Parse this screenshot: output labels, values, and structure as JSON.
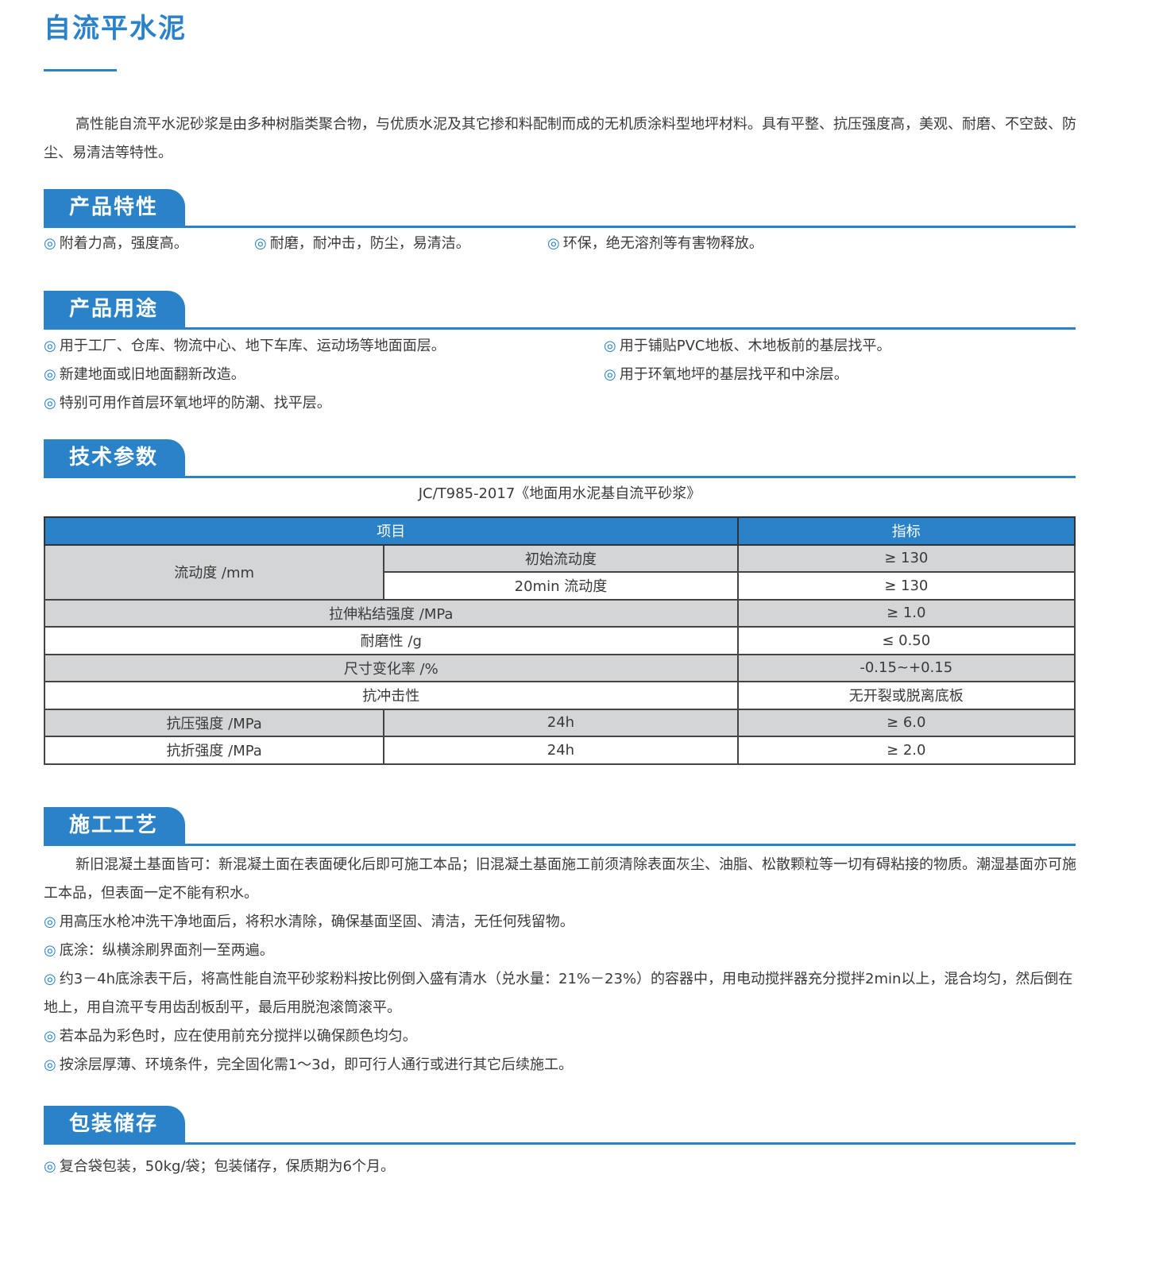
{
  "title": "自流平水泥",
  "intro": "高性能自流平水泥砂浆是由多种树脂类聚合物，与优质水泥及其它掺和料配制而成的无机质涂料型地坪材料。具有平整、抗压强度高，美观、耐磨、不空鼓、防尘、易清洁等特性。",
  "bullet_icon": "double-circle-icon",
  "accent_color": "#2a82c8",
  "features": {
    "heading": "产品特性",
    "items": [
      "附着力高，强度高。",
      "耐磨，耐冲击，防尘，易清洁。",
      "环保，绝无溶剂等有害物释放。"
    ]
  },
  "uses": {
    "heading": "产品用途",
    "items": [
      "用于工厂、仓库、物流中心、地下车库、运动场等地面面层。",
      "用于铺贴PVC地板、木地板前的基层找平。",
      "新建地面或旧地面翻新改造。",
      "用于环氧地坪的基层找平和中涂层。",
      "特别可用作首层环氧地坪的防潮、找平层。"
    ]
  },
  "specs": {
    "heading": "技术参数",
    "standard": "JC/T985-2017《地面用水泥基自流平砂浆》",
    "headers": [
      "项目",
      "指标"
    ],
    "rows": [
      {
        "item": "流动度 /mm",
        "sub": "初始流动度",
        "value": "≥ 130"
      },
      {
        "sub": "20min 流动度",
        "value": "≥ 130"
      },
      {
        "item": "拉伸粘结强度 /MPa",
        "value": "≥ 1.0"
      },
      {
        "item": "耐磨性 /g",
        "value": "≤ 0.50"
      },
      {
        "item": "尺寸变化率 /%",
        "value": "-0.15~+0.15"
      },
      {
        "item": "抗冲击性",
        "value": "无开裂或脱离底板"
      },
      {
        "item": "抗压强度 /MPa",
        "sub": "24h",
        "value": "≥ 6.0"
      },
      {
        "item": "抗折强度 /MPa",
        "sub": "24h",
        "value": "≥ 2.0"
      }
    ]
  },
  "process": {
    "heading": "施工工艺",
    "intro": "新旧混凝土基面皆可：新混凝土面在表面硬化后即可施工本品；旧混凝土基面施工前须清除表面灰尘、油脂、松散颗粒等一切有碍粘接的物质。潮湿基面亦可施工本品，但表面一定不能有积水。",
    "items": [
      "用高压水枪冲洗干净地面后，将积水清除，确保基面坚固、清洁，无任何残留物。",
      "底涂：纵横涂刷界面剂一至两遍。",
      "约3－4h底涂表干后，将高性能自流平砂浆粉料按比例倒入盛有清水（兑水量：21%－23%）的容器中，用电动搅拌器充分搅拌2min以上，混合均匀，然后倒在地上，用自流平专用齿刮板刮平，最后用脱泡滚筒滚平。",
      "若本品为彩色时，应在使用前充分搅拌以确保颜色均匀。",
      "按涂层厚薄、环境条件，完全固化需1～3d，即可行人通行或进行其它后续施工。"
    ]
  },
  "packaging": {
    "heading": "包装储存",
    "items": [
      "复合袋包装，50kg/袋；包装储存，保质期为6个月。"
    ]
  }
}
